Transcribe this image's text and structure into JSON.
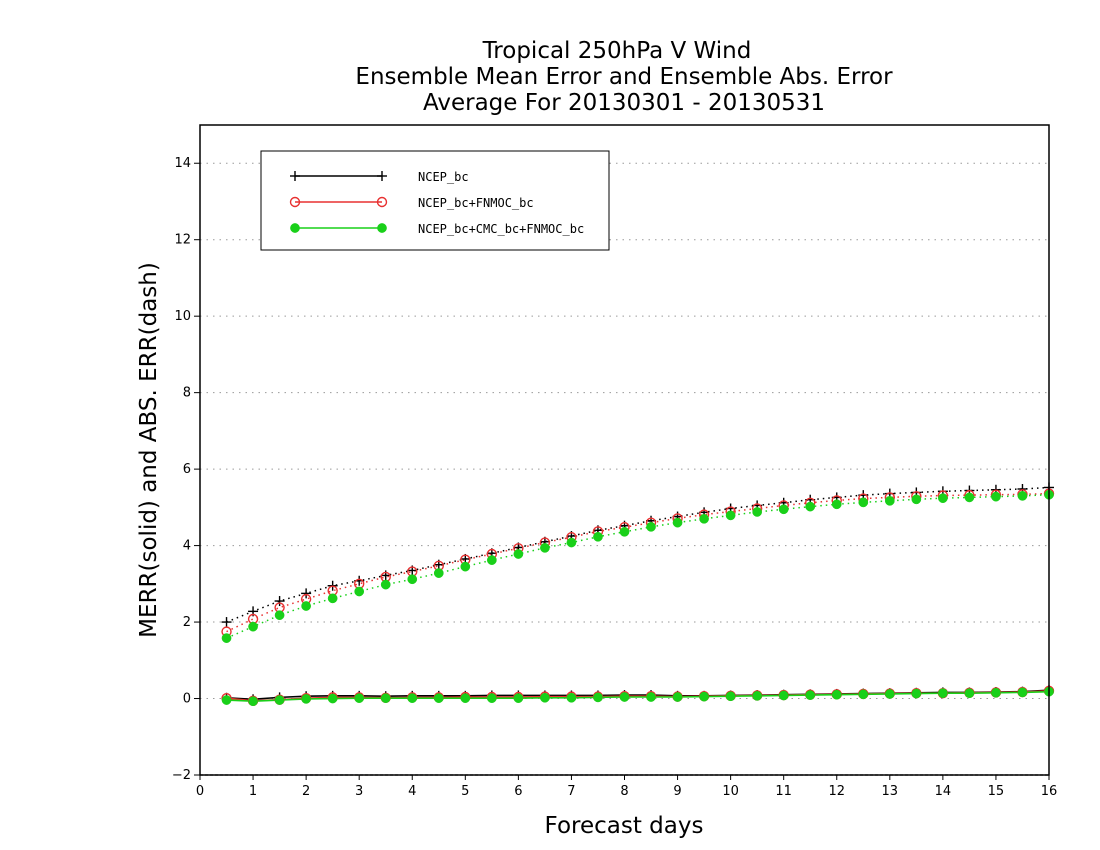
{
  "chart_data": {
    "type": "line",
    "title": [
      "Tropical 250hPa V Wind",
      "Ensemble Mean Error and Ensemble Abs. Error",
      "Average For 20130301 - 20130531"
    ],
    "xlabel": "Forecast days",
    "ylabel": "MERR(solid) and ABS. ERR(dash)",
    "xlim": [
      0,
      16
    ],
    "ylim": [
      -2,
      15
    ],
    "xticks": [
      0,
      1,
      2,
      3,
      4,
      5,
      6,
      7,
      8,
      9,
      10,
      11,
      12,
      13,
      14,
      15,
      16
    ],
    "yticks": [
      -2,
      0,
      2,
      4,
      6,
      8,
      10,
      12,
      14
    ],
    "grid": "horizontal dotted",
    "legend_position": "top-left",
    "x": [
      0.5,
      1,
      1.5,
      2,
      2.5,
      3,
      3.5,
      4,
      4.5,
      5,
      5.5,
      6,
      6.5,
      7,
      7.5,
      8,
      8.5,
      9,
      9.5,
      10,
      10.5,
      11,
      11.5,
      12,
      12.5,
      13,
      13.5,
      14,
      14.5,
      15,
      15.5,
      16
    ],
    "series": [
      {
        "name": "NCEP_bc",
        "color": "#000000",
        "marker": "plus",
        "abs_error": [
          2.0,
          2.28,
          2.55,
          2.75,
          2.95,
          3.08,
          3.22,
          3.35,
          3.5,
          3.65,
          3.8,
          3.95,
          4.1,
          4.25,
          4.4,
          4.52,
          4.65,
          4.76,
          4.87,
          4.97,
          5.05,
          5.12,
          5.2,
          5.26,
          5.32,
          5.36,
          5.39,
          5.42,
          5.44,
          5.46,
          5.48,
          5.52
        ],
        "mean_error": [
          0.02,
          -0.02,
          0.03,
          0.06,
          0.07,
          0.07,
          0.06,
          0.07,
          0.07,
          0.07,
          0.08,
          0.08,
          0.08,
          0.08,
          0.08,
          0.09,
          0.09,
          0.07,
          0.07,
          0.08,
          0.09,
          0.1,
          0.11,
          0.12,
          0.13,
          0.14,
          0.15,
          0.16,
          0.16,
          0.17,
          0.18,
          0.22
        ]
      },
      {
        "name": "NCEP_bc+FNMOC_bc",
        "color": "#e83030",
        "marker": "open-circle",
        "abs_error": [
          1.75,
          2.08,
          2.38,
          2.6,
          2.82,
          3.0,
          3.18,
          3.32,
          3.47,
          3.63,
          3.78,
          3.93,
          4.08,
          4.22,
          4.37,
          4.48,
          4.6,
          4.71,
          4.81,
          4.89,
          4.97,
          5.05,
          5.12,
          5.18,
          5.23,
          5.26,
          5.29,
          5.31,
          5.32,
          5.33,
          5.34,
          5.36
        ],
        "mean_error": [
          0.01,
          -0.06,
          -0.03,
          0.01,
          0.03,
          0.03,
          0.02,
          0.03,
          0.03,
          0.04,
          0.04,
          0.04,
          0.05,
          0.05,
          0.05,
          0.06,
          0.06,
          0.05,
          0.06,
          0.07,
          0.08,
          0.09,
          0.1,
          0.11,
          0.12,
          0.13,
          0.14,
          0.14,
          0.15,
          0.16,
          0.17,
          0.2
        ]
      },
      {
        "name": "NCEP_bc+CMC_bc+FNMOC_bc",
        "color": "#19d019",
        "marker": "filled-circle",
        "abs_error": [
          1.58,
          1.88,
          2.18,
          2.42,
          2.62,
          2.8,
          2.98,
          3.12,
          3.28,
          3.45,
          3.62,
          3.78,
          3.94,
          4.08,
          4.23,
          4.36,
          4.49,
          4.6,
          4.7,
          4.79,
          4.88,
          4.95,
          5.02,
          5.08,
          5.13,
          5.17,
          5.21,
          5.24,
          5.26,
          5.28,
          5.3,
          5.33
        ],
        "mean_error": [
          -0.04,
          -0.07,
          -0.04,
          -0.01,
          0.0,
          0.01,
          0.01,
          0.01,
          0.01,
          0.01,
          0.01,
          0.01,
          0.02,
          0.02,
          0.03,
          0.04,
          0.04,
          0.04,
          0.05,
          0.06,
          0.07,
          0.08,
          0.09,
          0.1,
          0.11,
          0.12,
          0.13,
          0.14,
          0.14,
          0.15,
          0.16,
          0.18
        ]
      }
    ]
  }
}
